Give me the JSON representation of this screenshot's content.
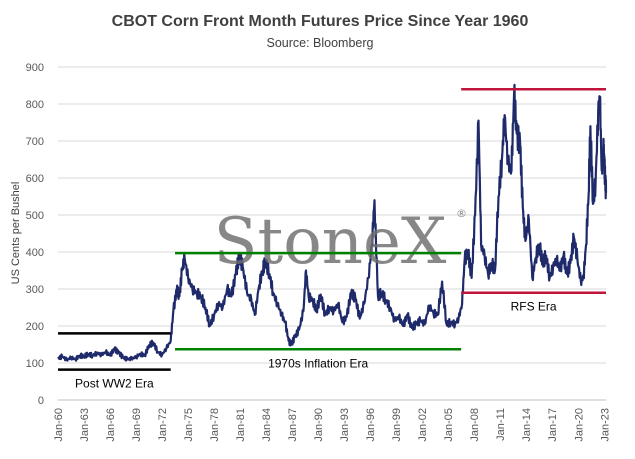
{
  "chart_data": {
    "type": "line",
    "title": "CBOT Corn Front Month Futures Price Since Year 1960",
    "subtitle": "Source: Bloomberg",
    "ylabel": "US Cents per Bushel",
    "xlabel": "",
    "ylim": [
      0,
      900
    ],
    "y_ticks": [
      0,
      100,
      200,
      300,
      400,
      500,
      600,
      700,
      800,
      900
    ],
    "x_range": [
      1960,
      2023.2
    ],
    "x_ticks": [
      {
        "label": "Jan-60",
        "year": 1960
      },
      {
        "label": "Jan-63",
        "year": 1963
      },
      {
        "label": "Jan-66",
        "year": 1966
      },
      {
        "label": "Jan-69",
        "year": 1969
      },
      {
        "label": "Jan-72",
        "year": 1972
      },
      {
        "label": "Jan-75",
        "year": 1975
      },
      {
        "label": "Jan-78",
        "year": 1978
      },
      {
        "label": "Jan-81",
        "year": 1981
      },
      {
        "label": "Jan-84",
        "year": 1984
      },
      {
        "label": "Jan-87",
        "year": 1987
      },
      {
        "label": "Jan-90",
        "year": 1990
      },
      {
        "label": "Jan-93",
        "year": 1993
      },
      {
        "label": "Jan-96",
        "year": 1996
      },
      {
        "label": "Jan-99",
        "year": 1999
      },
      {
        "label": "Jan-02",
        "year": 2002
      },
      {
        "label": "Jan-05",
        "year": 2005
      },
      {
        "label": "Jan-08",
        "year": 2008
      },
      {
        "label": "Jan-11",
        "year": 2011
      },
      {
        "label": "Jan-14",
        "year": 2014
      },
      {
        "label": "Jan-17",
        "year": 2017
      },
      {
        "label": "Jan-20",
        "year": 2020
      },
      {
        "label": "Jan-23",
        "year": 2023
      }
    ],
    "grid": "horizontal",
    "legend": "none",
    "series": [
      {
        "color": "#1f2a6b",
        "points": [
          [
            1960.0,
            112
          ],
          [
            1960.5,
            118
          ],
          [
            1961.0,
            108
          ],
          [
            1961.5,
            115
          ],
          [
            1962.0,
            110
          ],
          [
            1962.5,
            120
          ],
          [
            1963.0,
            118
          ],
          [
            1963.5,
            124
          ],
          [
            1964.0,
            120
          ],
          [
            1964.5,
            127
          ],
          [
            1965.0,
            122
          ],
          [
            1965.5,
            130
          ],
          [
            1966.0,
            120
          ],
          [
            1966.5,
            138
          ],
          [
            1967.0,
            128
          ],
          [
            1967.5,
            115
          ],
          [
            1968.0,
            110
          ],
          [
            1968.5,
            112
          ],
          [
            1969.0,
            116
          ],
          [
            1969.5,
            125
          ],
          [
            1970.0,
            120
          ],
          [
            1970.5,
            148
          ],
          [
            1971.0,
            155
          ],
          [
            1971.5,
            130
          ],
          [
            1972.0,
            122
          ],
          [
            1972.5,
            140
          ],
          [
            1973.0,
            160
          ],
          [
            1973.3,
            240
          ],
          [
            1973.7,
            300
          ],
          [
            1974.0,
            280
          ],
          [
            1974.3,
            350
          ],
          [
            1974.6,
            385
          ],
          [
            1975.0,
            330
          ],
          [
            1975.5,
            300
          ],
          [
            1976.0,
            290
          ],
          [
            1976.5,
            280
          ],
          [
            1977.0,
            250
          ],
          [
            1977.5,
            200
          ],
          [
            1978.0,
            230
          ],
          [
            1978.5,
            260
          ],
          [
            1979.0,
            250
          ],
          [
            1979.5,
            300
          ],
          [
            1980.0,
            280
          ],
          [
            1980.5,
            340
          ],
          [
            1980.9,
            390
          ],
          [
            1981.3,
            360
          ],
          [
            1981.8,
            290
          ],
          [
            1982.3,
            270
          ],
          [
            1982.7,
            230
          ],
          [
            1983.2,
            310
          ],
          [
            1983.6,
            350
          ],
          [
            1983.9,
            375
          ],
          [
            1984.4,
            340
          ],
          [
            1984.8,
            290
          ],
          [
            1985.3,
            260
          ],
          [
            1985.8,
            230
          ],
          [
            1986.2,
            210
          ],
          [
            1986.6,
            160
          ],
          [
            1986.9,
            150
          ],
          [
            1987.3,
            170
          ],
          [
            1987.8,
            190
          ],
          [
            1988.3,
            240
          ],
          [
            1988.6,
            350
          ],
          [
            1988.9,
            280
          ],
          [
            1989.4,
            270
          ],
          [
            1989.8,
            240
          ],
          [
            1990.3,
            285
          ],
          [
            1990.8,
            230
          ],
          [
            1991.3,
            250
          ],
          [
            1991.8,
            240
          ],
          [
            1992.3,
            260
          ],
          [
            1992.8,
            210
          ],
          [
            1993.3,
            225
          ],
          [
            1993.8,
            290
          ],
          [
            1994.3,
            275
          ],
          [
            1994.8,
            220
          ],
          [
            1995.3,
            260
          ],
          [
            1995.8,
            330
          ],
          [
            1996.2,
            420
          ],
          [
            1996.5,
            540
          ],
          [
            1996.9,
            280
          ],
          [
            1997.3,
            290
          ],
          [
            1997.8,
            270
          ],
          [
            1998.3,
            250
          ],
          [
            1998.8,
            215
          ],
          [
            1999.3,
            225
          ],
          [
            1999.8,
            200
          ],
          [
            2000.3,
            230
          ],
          [
            2000.8,
            195
          ],
          [
            2001.3,
            205
          ],
          [
            2001.8,
            215
          ],
          [
            2002.3,
            205
          ],
          [
            2002.8,
            255
          ],
          [
            2003.3,
            235
          ],
          [
            2003.8,
            230
          ],
          [
            2004.3,
            320
          ],
          [
            2004.8,
            205
          ],
          [
            2005.3,
            210
          ],
          [
            2005.8,
            205
          ],
          [
            2006.2,
            220
          ],
          [
            2006.6,
            260
          ],
          [
            2006.9,
            380
          ],
          [
            2007.3,
            400
          ],
          [
            2007.7,
            330
          ],
          [
            2008.1,
            500
          ],
          [
            2008.5,
            755
          ],
          [
            2008.8,
            420
          ],
          [
            2009.2,
            390
          ],
          [
            2009.6,
            340
          ],
          [
            2010.0,
            370
          ],
          [
            2010.4,
            350
          ],
          [
            2010.8,
            550
          ],
          [
            2011.2,
            650
          ],
          [
            2011.5,
            770
          ],
          [
            2011.9,
            640
          ],
          [
            2012.3,
            620
          ],
          [
            2012.6,
            830
          ],
          [
            2012.9,
            720
          ],
          [
            2013.3,
            690
          ],
          [
            2013.6,
            520
          ],
          [
            2013.9,
            430
          ],
          [
            2014.3,
            490
          ],
          [
            2014.7,
            330
          ],
          [
            2015.1,
            385
          ],
          [
            2015.5,
            420
          ],
          [
            2015.9,
            370
          ],
          [
            2016.3,
            390
          ],
          [
            2016.7,
            330
          ],
          [
            2017.1,
            360
          ],
          [
            2017.5,
            380
          ],
          [
            2017.9,
            350
          ],
          [
            2018.3,
            390
          ],
          [
            2018.7,
            340
          ],
          [
            2019.1,
            370
          ],
          [
            2019.5,
            440
          ],
          [
            2019.9,
            380
          ],
          [
            2020.3,
            320
          ],
          [
            2020.6,
            330
          ],
          [
            2020.9,
            420
          ],
          [
            2021.2,
            560
          ],
          [
            2021.4,
            740
          ],
          [
            2021.7,
            530
          ],
          [
            2022.0,
            590
          ],
          [
            2022.3,
            780
          ],
          [
            2022.5,
            820
          ],
          [
            2022.7,
            620
          ],
          [
            2022.9,
            680
          ],
          [
            2023.0,
            640
          ],
          [
            2023.1,
            600
          ],
          [
            2023.2,
            560
          ]
        ]
      }
    ],
    "annotations": [
      {
        "text": "Post WW2 Era",
        "color": "#000000",
        "x_start": 1960,
        "x_end": 1973,
        "y_upper": 180,
        "y_lower": 82
      },
      {
        "text": "1970s Inflation Era",
        "color": "#008000",
        "x_start": 1973.5,
        "x_end": 2006.5,
        "y_upper": 397,
        "y_lower": 137
      },
      {
        "text": "RFS Era",
        "color": "#c0143c",
        "x_start": 2006.5,
        "x_end": 2023.2,
        "y_upper": 840,
        "y_lower": 290
      }
    ],
    "watermark": "StoneX",
    "watermark_mark": "®"
  }
}
